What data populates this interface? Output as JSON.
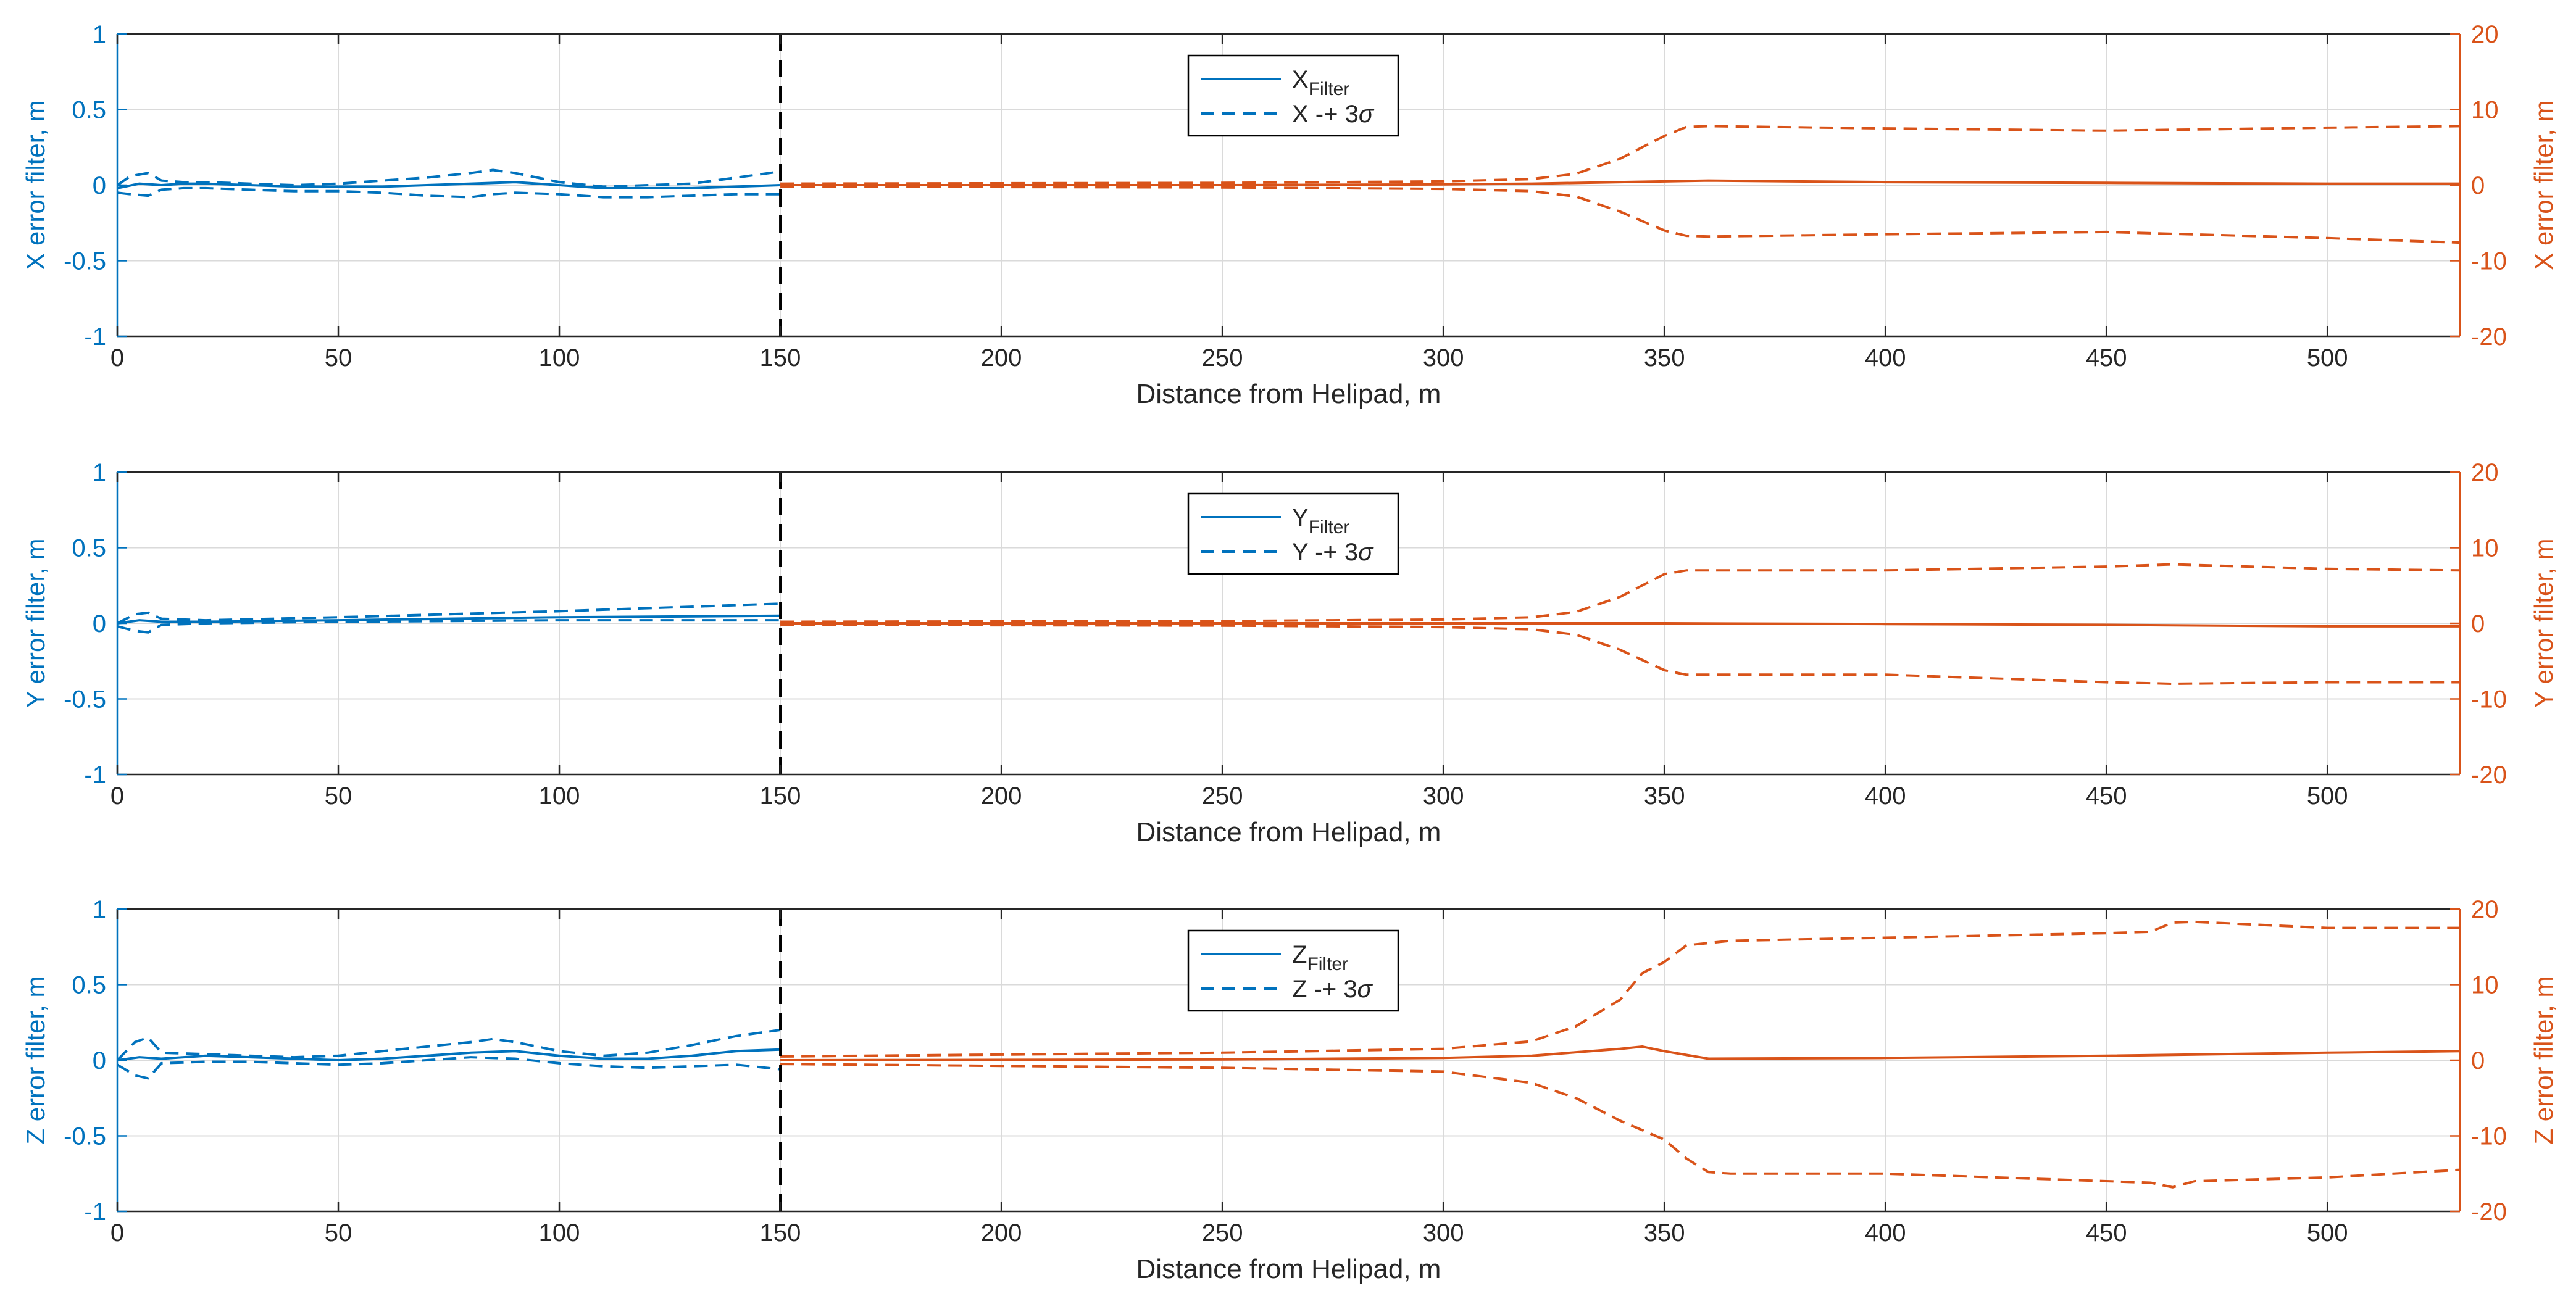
{
  "chart_data": [
    {
      "type": "line",
      "xlabel": "Distance from Helipad, m",
      "ylabel_left": "X error filter, m",
      "ylabel_right": "X error filter, m",
      "xlim": [
        0,
        530
      ],
      "xticks": [
        0,
        50,
        100,
        150,
        200,
        250,
        300,
        350,
        400,
        450,
        500
      ],
      "ylim_left": [
        -1,
        1
      ],
      "yticks_left": [
        -1,
        -0.5,
        0,
        0.5,
        1
      ],
      "ylim_right": [
        -20,
        20
      ],
      "yticks_right": [
        -20,
        -10,
        0,
        10,
        20
      ],
      "divider_x": 150,
      "grid": true,
      "legend": {
        "position": "top-center",
        "entries": [
          {
            "label": "X",
            "sub": "Filter",
            "style": "solid"
          },
          {
            "label": "X -+ 3",
            "sym": "σ",
            "style": "dashed"
          }
        ]
      },
      "series": [
        {
          "name": "filter-left",
          "axis": "left",
          "style": "solid",
          "x": [
            0,
            5,
            10,
            15,
            20,
            30,
            40,
            50,
            60,
            70,
            80,
            90,
            100,
            110,
            120,
            130,
            140,
            150
          ],
          "y": [
            -0.02,
            0.01,
            0.0,
            0.01,
            0.01,
            0.0,
            -0.01,
            -0.01,
            -0.01,
            0.0,
            0.01,
            0.02,
            0.0,
            -0.02,
            -0.02,
            -0.02,
            -0.01,
            0.0
          ]
        },
        {
          "name": "upper-left",
          "axis": "left",
          "style": "dashed",
          "x": [
            0,
            3,
            7,
            10,
            15,
            20,
            30,
            40,
            50,
            60,
            70,
            80,
            85,
            90,
            100,
            110,
            120,
            130,
            140,
            150
          ],
          "y": [
            0.0,
            0.06,
            0.08,
            0.03,
            0.02,
            0.02,
            0.01,
            0.0,
            0.01,
            0.03,
            0.05,
            0.08,
            0.1,
            0.08,
            0.02,
            -0.01,
            0.0,
            0.01,
            0.05,
            0.09
          ]
        },
        {
          "name": "lower-left",
          "axis": "left",
          "style": "dashed",
          "x": [
            0,
            3,
            7,
            10,
            15,
            20,
            30,
            40,
            50,
            60,
            70,
            80,
            85,
            90,
            100,
            110,
            120,
            130,
            140,
            150
          ],
          "y": [
            -0.05,
            -0.06,
            -0.07,
            -0.03,
            -0.02,
            -0.02,
            -0.03,
            -0.04,
            -0.04,
            -0.05,
            -0.07,
            -0.08,
            -0.06,
            -0.05,
            -0.06,
            -0.08,
            -0.08,
            -0.07,
            -0.06,
            -0.06
          ]
        },
        {
          "name": "filter-right",
          "axis": "right",
          "style": "solid",
          "x": [
            150,
            250,
            300,
            320,
            340,
            350,
            360,
            400,
            450,
            500,
            530
          ],
          "y": [
            0.0,
            0.0,
            0.1,
            0.2,
            0.4,
            0.5,
            0.6,
            0.4,
            0.3,
            0.2,
            0.2
          ]
        },
        {
          "name": "upper-right",
          "axis": "right",
          "style": "dashed",
          "x": [
            150,
            250,
            300,
            320,
            330,
            340,
            350,
            355,
            360,
            400,
            450,
            500,
            530
          ],
          "y": [
            0.2,
            0.3,
            0.5,
            0.8,
            1.5,
            3.5,
            6.5,
            7.7,
            7.8,
            7.5,
            7.2,
            7.6,
            7.8
          ]
        },
        {
          "name": "lower-right",
          "axis": "right",
          "style": "dashed",
          "x": [
            150,
            250,
            300,
            320,
            330,
            340,
            350,
            355,
            360,
            400,
            450,
            500,
            530
          ],
          "y": [
            -0.2,
            -0.3,
            -0.5,
            -0.8,
            -1.5,
            -3.5,
            -6,
            -6.7,
            -6.8,
            -6.5,
            -6.2,
            -7,
            -7.6
          ]
        }
      ]
    },
    {
      "type": "line",
      "xlabel": "Distance from Helipad, m",
      "ylabel_left": "Y error filter, m",
      "ylabel_right": "Y error filter, m",
      "xlim": [
        0,
        530
      ],
      "xticks": [
        0,
        50,
        100,
        150,
        200,
        250,
        300,
        350,
        400,
        450,
        500
      ],
      "ylim_left": [
        -1,
        1
      ],
      "yticks_left": [
        -1,
        -0.5,
        0,
        0.5,
        1
      ],
      "ylim_right": [
        -20,
        20
      ],
      "yticks_right": [
        -20,
        -10,
        0,
        10,
        20
      ],
      "divider_x": 150,
      "grid": true,
      "legend": {
        "position": "top-center",
        "entries": [
          {
            "label": "Y",
            "sub": "Filter",
            "style": "solid"
          },
          {
            "label": "Y -+ 3",
            "sym": "σ",
            "style": "dashed"
          }
        ]
      },
      "series": [
        {
          "name": "filter-left",
          "axis": "left",
          "style": "solid",
          "x": [
            0,
            5,
            10,
            20,
            50,
            100,
            150
          ],
          "y": [
            0.0,
            0.02,
            0.01,
            0.01,
            0.02,
            0.04,
            0.05
          ]
        },
        {
          "name": "upper-left",
          "axis": "left",
          "style": "dashed",
          "x": [
            0,
            4,
            7,
            10,
            20,
            50,
            100,
            150
          ],
          "y": [
            0.0,
            0.06,
            0.07,
            0.03,
            0.02,
            0.04,
            0.08,
            0.13
          ]
        },
        {
          "name": "lower-left",
          "axis": "left",
          "style": "dashed",
          "x": [
            0,
            4,
            7,
            10,
            20,
            50,
            100,
            150
          ],
          "y": [
            -0.02,
            -0.05,
            -0.06,
            -0.01,
            0.0,
            0.01,
            0.02,
            0.02
          ]
        },
        {
          "name": "filter-right",
          "axis": "right",
          "style": "solid",
          "x": [
            150,
            300,
            350,
            400,
            450,
            500,
            530
          ],
          "y": [
            0.0,
            0.0,
            0.0,
            -0.1,
            -0.2,
            -0.4,
            -0.4
          ]
        },
        {
          "name": "upper-right",
          "axis": "right",
          "style": "dashed",
          "x": [
            150,
            250,
            300,
            320,
            330,
            340,
            350,
            355,
            400,
            450,
            465,
            500,
            530
          ],
          "y": [
            0.2,
            0.3,
            0.5,
            0.8,
            1.5,
            3.5,
            6.5,
            7.0,
            7.0,
            7.5,
            7.8,
            7.2,
            7.0
          ]
        },
        {
          "name": "lower-right",
          "axis": "right",
          "style": "dashed",
          "x": [
            150,
            250,
            300,
            320,
            330,
            340,
            350,
            355,
            400,
            450,
            465,
            500,
            530
          ],
          "y": [
            -0.2,
            -0.3,
            -0.5,
            -0.8,
            -1.5,
            -3.5,
            -6.2,
            -6.8,
            -6.8,
            -7.8,
            -8.0,
            -7.8,
            -7.8
          ]
        }
      ]
    },
    {
      "type": "line",
      "xlabel": "Distance from Helipad, m",
      "ylabel_left": "Z error filter, m",
      "ylabel_right": "Z error filter, m",
      "xlim": [
        0,
        530
      ],
      "xticks": [
        0,
        50,
        100,
        150,
        200,
        250,
        300,
        350,
        400,
        450,
        500
      ],
      "ylim_left": [
        -1,
        1
      ],
      "yticks_left": [
        -1,
        -0.5,
        0,
        0.5,
        1
      ],
      "ylim_right": [
        -20,
        20
      ],
      "yticks_right": [
        -20,
        -10,
        0,
        10,
        20
      ],
      "divider_x": 150,
      "grid": true,
      "legend": {
        "position": "top-center",
        "entries": [
          {
            "label": "Z",
            "sub": "Filter",
            "style": "solid"
          },
          {
            "label": "Z -+ 3",
            "sym": "σ",
            "style": "dashed"
          }
        ]
      },
      "series": [
        {
          "name": "filter-left",
          "axis": "left",
          "style": "solid",
          "x": [
            0,
            5,
            10,
            20,
            30,
            40,
            50,
            60,
            70,
            80,
            90,
            100,
            110,
            120,
            130,
            140,
            150
          ],
          "y": [
            0.0,
            0.02,
            0.01,
            0.03,
            0.02,
            0.01,
            0.0,
            0.01,
            0.03,
            0.05,
            0.06,
            0.03,
            0.01,
            0.01,
            0.03,
            0.06,
            0.07
          ]
        },
        {
          "name": "upper-left",
          "axis": "left",
          "style": "dashed",
          "x": [
            0,
            4,
            7,
            10,
            20,
            30,
            40,
            50,
            60,
            70,
            80,
            85,
            90,
            100,
            110,
            120,
            130,
            140,
            150
          ],
          "y": [
            0.0,
            0.12,
            0.15,
            0.05,
            0.04,
            0.03,
            0.02,
            0.03,
            0.06,
            0.09,
            0.12,
            0.14,
            0.12,
            0.06,
            0.03,
            0.05,
            0.1,
            0.16,
            0.2
          ]
        },
        {
          "name": "lower-left",
          "axis": "left",
          "style": "dashed",
          "x": [
            0,
            4,
            7,
            10,
            20,
            30,
            40,
            50,
            60,
            70,
            80,
            90,
            100,
            110,
            120,
            130,
            140,
            150
          ],
          "y": [
            -0.03,
            -0.1,
            -0.12,
            -0.02,
            -0.01,
            -0.01,
            -0.02,
            -0.03,
            -0.02,
            0.0,
            0.02,
            0.01,
            -0.02,
            -0.04,
            -0.05,
            -0.04,
            -0.03,
            -0.06
          ]
        },
        {
          "name": "filter-right",
          "axis": "right",
          "style": "solid",
          "x": [
            150,
            250,
            300,
            320,
            340,
            345,
            350,
            360,
            400,
            450,
            500,
            530
          ],
          "y": [
            0.0,
            0.1,
            0.3,
            0.6,
            1.5,
            1.8,
            1.2,
            0.2,
            0.3,
            0.6,
            1.0,
            1.2
          ]
        },
        {
          "name": "upper-right",
          "axis": "right",
          "style": "dashed",
          "x": [
            150,
            250,
            300,
            320,
            330,
            340,
            345,
            350,
            355,
            365,
            400,
            450,
            460,
            465,
            470,
            500,
            530
          ],
          "y": [
            0.5,
            1.0,
            1.5,
            2.5,
            4.5,
            8,
            11.5,
            13,
            15.2,
            15.8,
            16.2,
            16.8,
            17.0,
            18.2,
            18.3,
            17.5,
            17.5
          ]
        },
        {
          "name": "lower-right",
          "axis": "right",
          "style": "dashed",
          "x": [
            150,
            250,
            300,
            320,
            330,
            340,
            350,
            355,
            360,
            365,
            400,
            450,
            460,
            465,
            470,
            500,
            530
          ],
          "y": [
            -0.5,
            -1.0,
            -1.5,
            -3.0,
            -5,
            -8,
            -10.5,
            -13,
            -14.8,
            -15.0,
            -15.0,
            -16.0,
            -16.2,
            -16.8,
            -16.0,
            -15.5,
            -14.5
          ]
        }
      ]
    }
  ]
}
